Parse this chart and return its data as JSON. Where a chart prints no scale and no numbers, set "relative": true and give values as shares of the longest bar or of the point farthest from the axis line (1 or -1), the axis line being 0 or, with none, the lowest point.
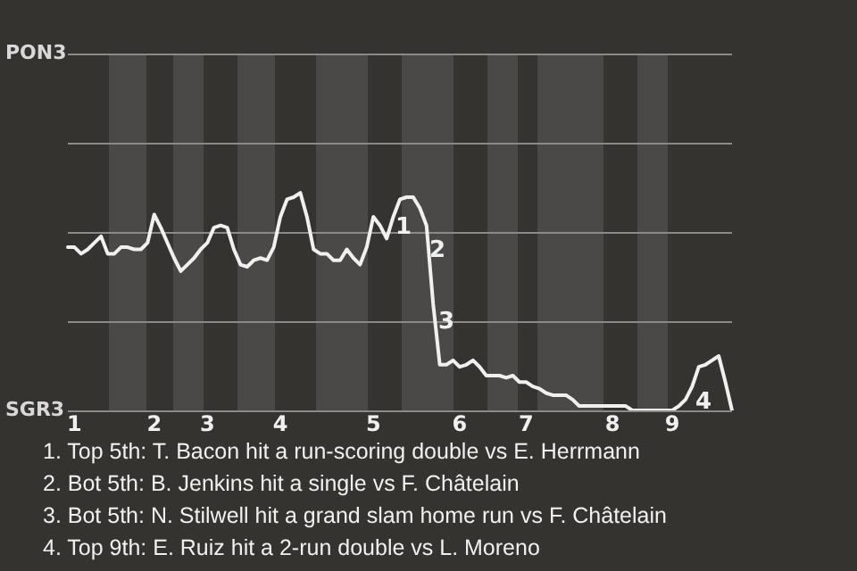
{
  "chart_data": {
    "type": "line",
    "relative": true,
    "categories": [
      null,
      "1",
      null,
      null,
      null,
      null,
      null,
      null,
      null,
      null,
      null,
      null,
      null,
      "2",
      null,
      null,
      null,
      null,
      null,
      null,
      null,
      "3",
      null,
      null,
      null,
      null,
      null,
      null,
      null,
      null,
      null,
      null,
      "4",
      null,
      null,
      null,
      null,
      null,
      null,
      null,
      null,
      null,
      null,
      null,
      null,
      null,
      "5",
      null,
      null,
      null,
      null,
      null,
      null,
      null,
      null,
      null,
      null,
      null,
      null,
      "6",
      null,
      null,
      null,
      null,
      null,
      null,
      null,
      null,
      null,
      "7",
      null,
      null,
      null,
      null,
      null,
      null,
      null,
      null,
      null,
      null,
      null,
      null,
      "8",
      null,
      null,
      null,
      null,
      null,
      null,
      null,
      null,
      "9",
      null,
      null,
      null,
      null,
      null,
      null,
      null,
      null,
      null
    ],
    "series": [
      {
        "color": "#f0f0f0",
        "values": [
          0.75,
          0.75,
          0.72,
          0.74,
          0.77,
          0.8,
          0.72,
          0.72,
          0.75,
          0.75,
          0.74,
          0.74,
          0.77,
          0.9,
          0.84,
          0.77,
          0.7,
          0.64,
          0.67,
          0.7,
          0.74,
          0.77,
          0.84,
          0.85,
          0.84,
          0.74,
          0.67,
          0.66,
          0.69,
          0.7,
          0.69,
          0.75,
          0.89,
          0.97,
          0.98,
          1,
          0.89,
          0.74,
          0.72,
          0.72,
          0.69,
          0.69,
          0.74,
          0.7,
          0.67,
          0.75,
          0.89,
          0.85,
          0.79,
          0.89,
          0.97,
          0.98,
          0.98,
          0.93,
          0.85,
          0.49,
          0.21,
          0.21,
          0.23,
          0.2,
          0.21,
          0.23,
          0.2,
          0.16,
          0.16,
          0.16,
          0.15,
          0.16,
          0.13,
          0.13,
          0.11,
          0.1,
          0.08,
          0.07,
          0.07,
          0.07,
          0.05,
          0.02,
          0.02,
          0.02,
          0.02,
          0.02,
          0.02,
          0.02,
          0.02,
          0,
          0,
          0,
          0,
          0,
          0,
          0,
          0.02,
          0.05,
          0.11,
          0.2,
          0.21,
          0.23,
          0.25,
          0.13,
          0
        ]
      }
    ],
    "ref_lines": [
      {
        "axis": "y",
        "value": 0.41,
        "color": "#8a8a8a"
      },
      {
        "axis": "y",
        "value": 0.82,
        "color": "#8a8a8a"
      },
      {
        "axis": "y",
        "value": 1.23,
        "color": "#8a8a8a"
      },
      {
        "axis": "y",
        "value": 1.64,
        "color": "#8a8a8a"
      }
    ],
    "legend": false,
    "marker": "none",
    "annotations": [
      "PON3",
      "SGR3",
      "1",
      "2",
      "3",
      "4",
      "1. Top 5th: T. Bacon hit a run-scoring double vs E. Herrmann",
      "2. Bot 5th: B. Jenkins hit a single vs F. Châtelain",
      "3. Bot 5th: N. Stilwell hit a grand slam home run vs F. Châtelain",
      "4. Top 9th: E. Ruiz hit a 2-run double vs L. Moreno"
    ]
  }
}
